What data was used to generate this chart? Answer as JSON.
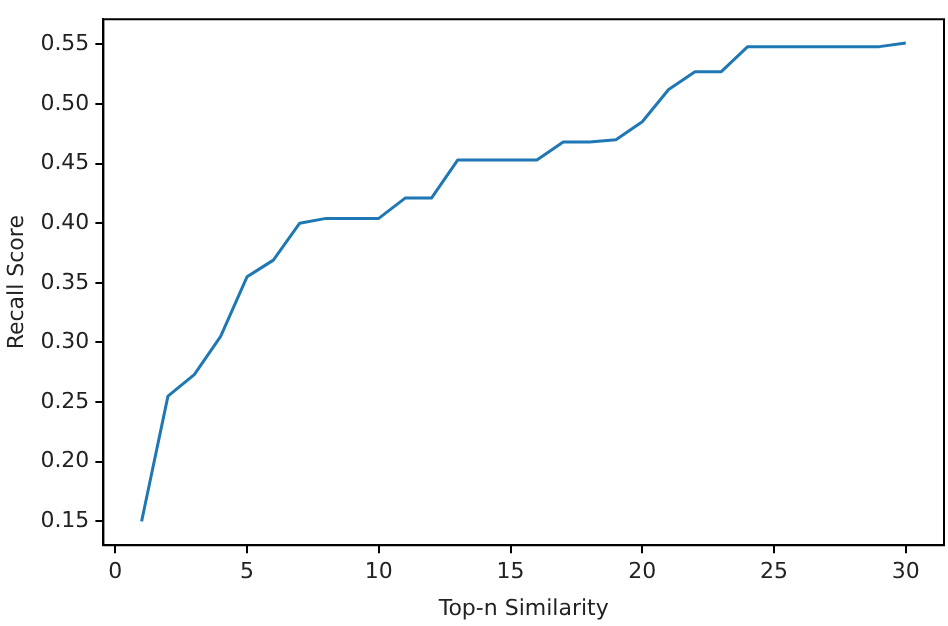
{
  "chart_data": {
    "type": "line",
    "xlabel": "Top-n Similarity",
    "ylabel": "Recall Score",
    "x": [
      1,
      2,
      3,
      4,
      5,
      6,
      7,
      8,
      9,
      10,
      11,
      12,
      13,
      14,
      15,
      16,
      17,
      18,
      19,
      20,
      21,
      22,
      23,
      24,
      25,
      26,
      27,
      28,
      29,
      30
    ],
    "series": [
      {
        "color": "#1f77b4",
        "values": [
          0.15,
          0.255,
          0.273,
          0.305,
          0.355,
          0.369,
          0.4,
          0.404,
          0.404,
          0.404,
          0.421,
          0.421,
          0.453,
          0.453,
          0.453,
          0.453,
          0.468,
          0.468,
          0.47,
          0.485,
          0.512,
          0.527,
          0.527,
          0.548,
          0.548,
          0.548,
          0.548,
          0.548,
          0.548,
          0.551
        ]
      }
    ],
    "xlim": [
      -0.45,
      31.45
    ],
    "xticks": [
      0,
      5,
      10,
      15,
      20,
      25,
      30
    ],
    "ylim": [
      0.13,
      0.571
    ],
    "yticks": [
      {
        "value": 0.15,
        "label": "0.15"
      },
      {
        "value": 0.2,
        "label": "0.20"
      },
      {
        "value": 0.25,
        "label": "0.25"
      },
      {
        "value": 0.3,
        "label": "0.30"
      },
      {
        "value": 0.35,
        "label": "0.35"
      },
      {
        "value": 0.4,
        "label": "0.40"
      },
      {
        "value": 0.45,
        "label": "0.45"
      },
      {
        "value": 0.5,
        "label": "0.50"
      },
      {
        "value": 0.55,
        "label": "0.55"
      }
    ],
    "grid": false,
    "legend": false,
    "marker": "none",
    "line_style": "solid"
  }
}
